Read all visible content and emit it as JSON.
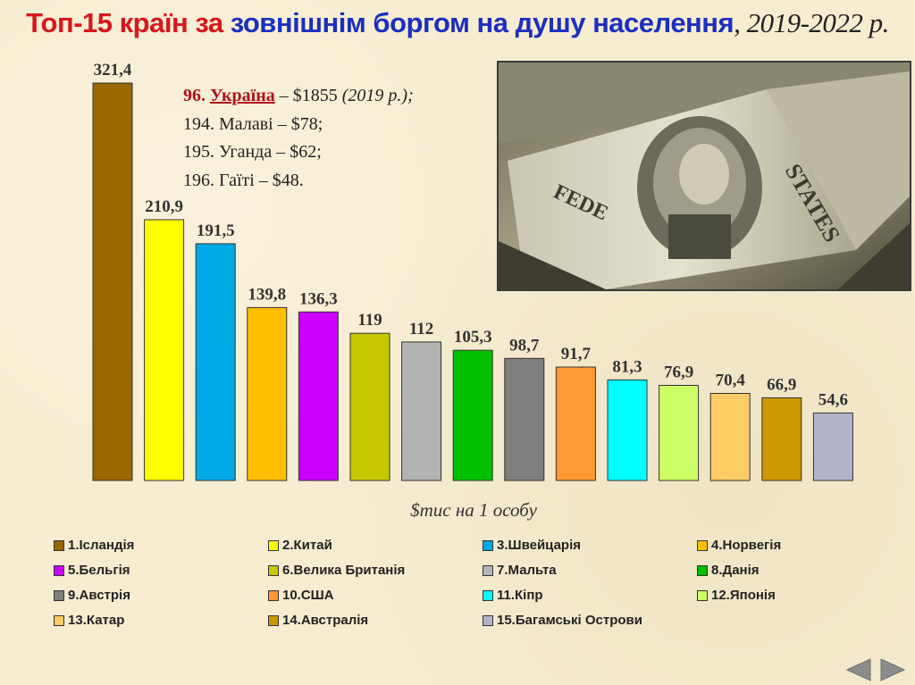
{
  "title": {
    "part1": "Топ-15 країн за ",
    "part2": "зовнішнім боргом на душу населення",
    "part3": ", 2019-2022 р."
  },
  "callout": {
    "line1_rank": "96.",
    "line1_country": "Україна",
    "line1_value": " – $1855 ",
    "line1_year": "(2019 р.);",
    "line2": "194. Малаві – $78;",
    "line3": "195. Уганда – $62;",
    "line4": "196. Гаїті – $48."
  },
  "chart_data": {
    "type": "bar",
    "xlabel": "$тис на 1 особу",
    "categories": [
      "1.Ісландія",
      "2.Китай",
      "3.Швейцарія",
      "4.Норвегія",
      "5.Бельгія",
      "6.Велика Британія",
      "7.Мальта",
      "8.Данія",
      "9.Австрія",
      "10.США",
      "11.Кіпр",
      "12.Японія",
      "13.Катар",
      "14.Австралія",
      "15.Багамські Острови"
    ],
    "values": [
      321.4,
      210.9,
      191.5,
      139.8,
      136.3,
      119,
      112,
      105.3,
      98.7,
      91.7,
      81.3,
      76.9,
      70.4,
      66.9,
      54.6
    ],
    "value_labels": [
      "321,4",
      "210,9",
      "191,5",
      "139,8",
      "136,3",
      "119",
      "112",
      "105,3",
      "98,7",
      "91,7",
      "81,3",
      "76,9",
      "70,4",
      "66,9",
      "54,6"
    ],
    "colors": [
      "#996600",
      "#ffff00",
      "#00a9e6",
      "#ffbf00",
      "#cc00ff",
      "#c8c800",
      "#b3b3b3",
      "#00c000",
      "#7f7f7f",
      "#ff9933",
      "#00ffff",
      "#ccff66",
      "#ffcc66",
      "#cc9900",
      "#b3b3cc"
    ],
    "ylim": [
      0,
      321.4
    ],
    "legend_placement": "bottom",
    "grid": false
  },
  "nav": {
    "prev": "previous-slide",
    "next": "next-slide"
  }
}
